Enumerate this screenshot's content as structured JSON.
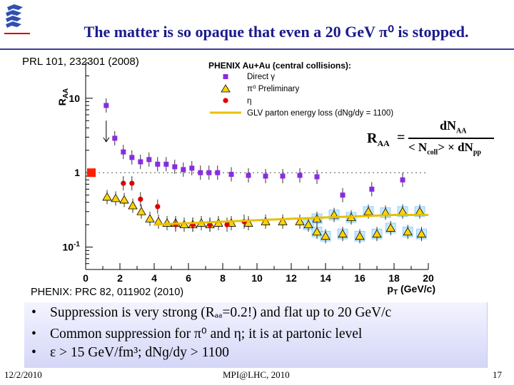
{
  "slide": {
    "title": "The matter is so opaque that even a 20 GeV π⁰ is stopped.",
    "ref_top": "PRL 101, 232301 (2008)",
    "ref_bottom": "PHENIX: PRC 82, 011902 (2010)",
    "bullets": [
      "Suppression is very strong (Rₐₐ=0.2!) and flat up to 20 GeV/c",
      "Common suppression for π⁰ and η; it is at partonic level",
      "ε > 15 GeV/fm³; dNɡ/dy > 1100"
    ],
    "bullet_marker": "•",
    "footer_date": "12/2/2010",
    "footer_center": "MPI@LHC, 2010",
    "footer_page": "17",
    "colors": {
      "title": "#1a1a8c",
      "rule": "#3a3aa0",
      "logo": "#2f4fb3"
    },
    "logo_icon": "university-logo-icon"
  },
  "formula": {
    "lhs": "R",
    "lhs_sub": "AA",
    "eq": "=",
    "num": "dN",
    "num_sub": "AA",
    "den_a": "< N",
    "den_a_sub": "coll",
    "den_b": "> × dN",
    "den_b_sub": "pp"
  },
  "chart_data": {
    "type": "scatter",
    "title": "PHENIX Au+Au (central collisions):",
    "xlabel": "pT (GeV/c)",
    "ylabel": "RAA",
    "xlim": [
      0,
      20
    ],
    "ylim": [
      0.05,
      30
    ],
    "yscale": "log",
    "xticks": [
      0,
      2,
      4,
      6,
      8,
      10,
      12,
      14,
      16,
      18,
      20
    ],
    "yticks": [
      {
        "v": 10,
        "label": "10"
      },
      {
        "v": 1,
        "label": "1"
      },
      {
        "v": 0.1,
        "label": "10-1"
      }
    ],
    "legend": [
      {
        "label": "Direct γ",
        "marker": "square",
        "color": "#8a2be2"
      },
      {
        "label": "π⁰ Preliminary",
        "marker": "triangle",
        "color": "#ffd400"
      },
      {
        "label": "η",
        "marker": "circle",
        "color": "#dd0000"
      },
      {
        "label": "GLV parton energy loss (dNɡ/dy = 1100)",
        "marker": "line",
        "color": "#e8c000"
      }
    ],
    "series": [
      {
        "name": "Direct γ",
        "marker": "square",
        "color": "#8a2be2",
        "points": [
          [
            1.2,
            8.0
          ],
          [
            1.7,
            2.9
          ],
          [
            2.2,
            1.9
          ],
          [
            2.7,
            1.6
          ],
          [
            3.2,
            1.4
          ],
          [
            3.7,
            1.5
          ],
          [
            4.2,
            1.3
          ],
          [
            4.7,
            1.3
          ],
          [
            5.2,
            1.2
          ],
          [
            5.7,
            1.1
          ],
          [
            6.2,
            1.15
          ],
          [
            6.7,
            1.0
          ],
          [
            7.2,
            1.0
          ],
          [
            7.7,
            1.0
          ],
          [
            8.5,
            0.95
          ],
          [
            9.5,
            0.92
          ],
          [
            10.5,
            0.9
          ],
          [
            11.5,
            0.9
          ],
          [
            12.5,
            0.92
          ],
          [
            13.5,
            0.88
          ],
          [
            15.0,
            0.5
          ],
          [
            16.7,
            0.6
          ],
          [
            18.5,
            0.8
          ]
        ]
      },
      {
        "name": "π⁰ Preliminary",
        "marker": "triangle",
        "color": "#ffd400",
        "points": [
          [
            1.25,
            0.47
          ],
          [
            1.75,
            0.45
          ],
          [
            2.25,
            0.43
          ],
          [
            2.75,
            0.36
          ],
          [
            3.25,
            0.3
          ],
          [
            3.75,
            0.24
          ],
          [
            4.25,
            0.22
          ],
          [
            4.75,
            0.21
          ],
          [
            5.25,
            0.21
          ],
          [
            5.75,
            0.2
          ],
          [
            6.25,
            0.2
          ],
          [
            6.75,
            0.21
          ],
          [
            7.25,
            0.2
          ],
          [
            7.75,
            0.21
          ],
          [
            8.5,
            0.21
          ],
          [
            9.5,
            0.21
          ],
          [
            10.5,
            0.22
          ],
          [
            11.5,
            0.22
          ],
          [
            12.5,
            0.22
          ],
          [
            13.5,
            0.24
          ],
          [
            14.5,
            0.27
          ],
          [
            15.5,
            0.25
          ],
          [
            16.5,
            0.3
          ],
          [
            17.5,
            0.29
          ],
          [
            18.5,
            0.3
          ],
          [
            19.5,
            0.3
          ],
          [
            13.0,
            0.2
          ],
          [
            13.5,
            0.16
          ],
          [
            14.0,
            0.14
          ],
          [
            15.0,
            0.15
          ],
          [
            16.0,
            0.14
          ],
          [
            17.0,
            0.15
          ],
          [
            17.8,
            0.18
          ],
          [
            18.8,
            0.16
          ],
          [
            19.6,
            0.15
          ]
        ]
      },
      {
        "name": "η",
        "marker": "circle",
        "color": "#dd0000",
        "points": [
          [
            2.2,
            0.72
          ],
          [
            2.7,
            0.72
          ],
          [
            3.2,
            0.44
          ],
          [
            4.2,
            0.35
          ],
          [
            5.25,
            0.2
          ],
          [
            6.25,
            0.2
          ],
          [
            7.25,
            0.2
          ],
          [
            8.25,
            0.2
          ],
          [
            9.25,
            0.22
          ]
        ]
      },
      {
        "name": "GLV parton energy loss (dNɡ/dy = 1100)",
        "marker": "line",
        "color": "#e8c000",
        "points": [
          [
            4,
            0.2
          ],
          [
            6,
            0.21
          ],
          [
            8,
            0.22
          ],
          [
            10,
            0.23
          ],
          [
            12,
            0.24
          ],
          [
            14,
            0.25
          ],
          [
            16,
            0.26
          ],
          [
            18,
            0.27
          ],
          [
            20,
            0.27
          ]
        ]
      }
    ]
  }
}
